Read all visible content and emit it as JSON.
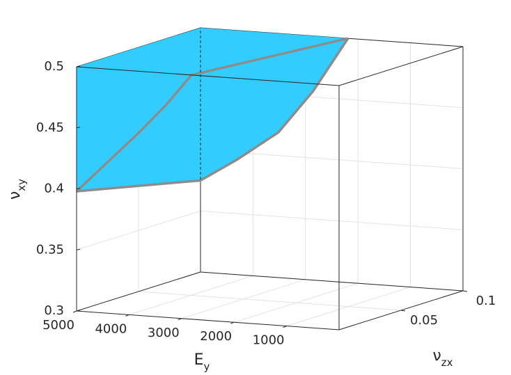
{
  "chart_data": {
    "type": "surface3d",
    "xlabel": {
      "symbol": "E",
      "subscript": "y"
    },
    "ylabel": {
      "symbol": "ν",
      "subscript": "zx"
    },
    "zlabel": {
      "symbol": "ν",
      "subscript": "xy"
    },
    "xlim": [
      0,
      5000
    ],
    "xticks": [
      1000,
      2000,
      3000,
      4000,
      5000
    ],
    "ylim": [
      0,
      0.1
    ],
    "yticks": [
      0.05,
      0.1
    ],
    "zlim": [
      0.3,
      0.5
    ],
    "zticks": [
      0.3,
      0.35,
      0.4,
      0.45,
      0.5
    ],
    "grid": true,
    "color": "#33ccff",
    "edge_color": "#8c8c8c",
    "surface": {
      "x": [
        5000,
        5000,
        2190,
        2851,
        3515,
        4310,
        5000,
        5000
      ],
      "y": [
        0,
        0.1,
        0.1,
        0.1,
        0.1,
        0.1,
        0.1,
        0
      ],
      "z": [
        0.5,
        0.5,
        0.5,
        0.455,
        0.419,
        0.394,
        0.375,
        0.398
      ]
    },
    "edges": [
      {
        "x": [
          5000,
          3806,
          3276,
          2812,
          2190
        ],
        "y": [
          0,
          0,
          0,
          0,
          0.1
        ],
        "z": [
          0.398,
          0.45,
          0.475,
          0.5,
          0.5
        ]
      },
      {
        "x": [
          2190,
          2851,
          3515,
          4310,
          5000,
          5000
        ],
        "y": [
          0.1,
          0.1,
          0.1,
          0.1,
          0.1,
          0
        ],
        "z": [
          0.5,
          0.455,
          0.419,
          0.394,
          0.375,
          0.398
        ]
      }
    ]
  }
}
